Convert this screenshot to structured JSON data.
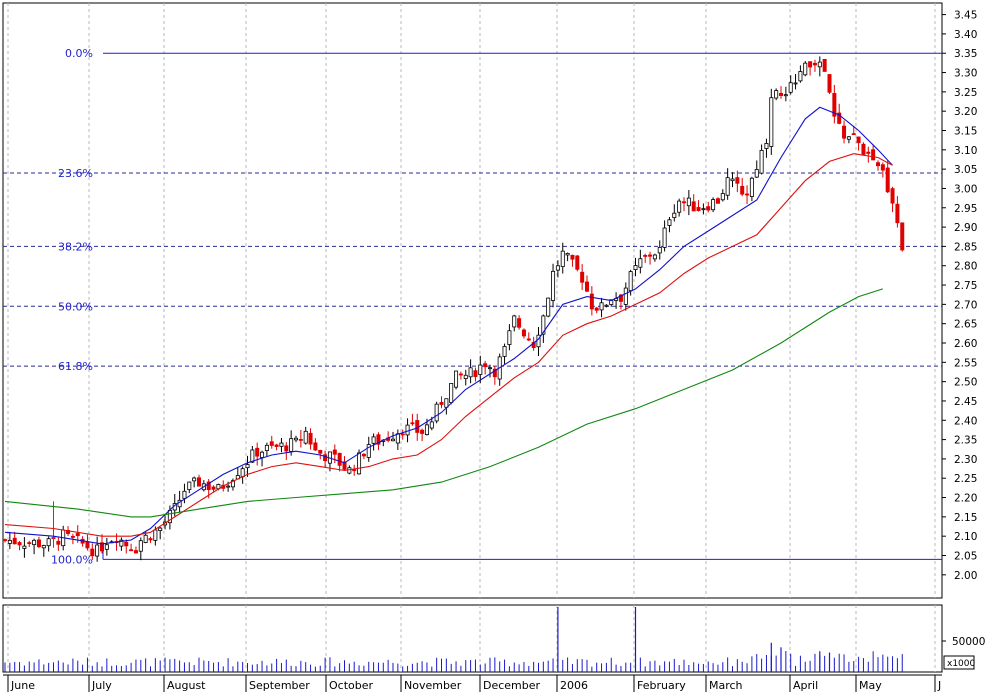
{
  "chart_data": {
    "type": "candlestick",
    "title": "",
    "price_axis": {
      "ylim": [
        1.94,
        3.48
      ],
      "ticks": [
        "2.00",
        "2.05",
        "2.10",
        "2.15",
        "2.20",
        "2.25",
        "2.30",
        "2.35",
        "2.40",
        "2.45",
        "2.50",
        "2.55",
        "2.60",
        "2.65",
        "2.70",
        "2.75",
        "2.80",
        "2.85",
        "2.90",
        "2.95",
        "3.00",
        "3.05",
        "3.10",
        "3.15",
        "3.20",
        "3.25",
        "3.30",
        "3.35",
        "3.40",
        "3.45"
      ],
      "position": "right"
    },
    "volume_axis": {
      "tick": "50000",
      "multiplier": "x1000"
    },
    "months": [
      "June",
      "July",
      "August",
      "September",
      "October",
      "November",
      "December",
      "2006",
      "February",
      "March",
      "April",
      "May",
      "J"
    ],
    "fibonacci": {
      "high": 3.35,
      "low": 2.04,
      "levels": [
        {
          "label": "0.0%",
          "value": 3.35,
          "style": "solid"
        },
        {
          "label": "23.6%",
          "value": 3.04,
          "style": "dashed"
        },
        {
          "label": "38.2%",
          "value": 2.85,
          "style": "dashed"
        },
        {
          "label": "50.0%",
          "value": 2.695,
          "style": "dashed"
        },
        {
          "label": "61.8%",
          "value": 2.54,
          "style": "dashed"
        },
        {
          "label": "100.0%",
          "value": 2.04,
          "style": "solid"
        }
      ]
    },
    "price_path": [
      [
        0,
        2.09
      ],
      [
        9,
        2.08
      ],
      [
        12,
        2.1
      ],
      [
        16,
        2.08
      ],
      [
        19,
        2.06
      ],
      [
        21,
        2.09
      ],
      [
        23,
        2.1
      ],
      [
        25,
        2.08
      ],
      [
        27,
        2.07
      ],
      [
        28,
        2.09
      ],
      [
        32,
        2.12
      ],
      [
        35,
        2.17
      ],
      [
        37,
        2.22
      ],
      [
        40,
        2.24
      ],
      [
        44,
        2.22
      ],
      [
        48,
        2.27
      ],
      [
        52,
        2.32
      ],
      [
        56,
        2.33
      ],
      [
        60,
        2.34
      ],
      [
        62,
        2.37
      ],
      [
        64,
        2.32
      ],
      [
        68,
        2.3
      ],
      [
        71,
        2.27
      ],
      [
        73,
        2.3
      ],
      [
        75,
        2.34
      ],
      [
        78,
        2.35
      ],
      [
        82,
        2.38
      ],
      [
        86,
        2.37
      ],
      [
        88,
        2.4
      ],
      [
        90,
        2.45
      ],
      [
        93,
        2.51
      ],
      [
        96,
        2.52
      ],
      [
        99,
        2.55
      ],
      [
        101,
        2.53
      ],
      [
        103,
        2.58
      ],
      [
        105,
        2.66
      ],
      [
        107,
        2.63
      ],
      [
        109,
        2.6
      ],
      [
        111,
        2.67
      ],
      [
        113,
        2.78
      ],
      [
        115,
        2.83
      ],
      [
        117,
        2.8
      ],
      [
        119,
        2.77
      ],
      [
        121,
        2.7
      ],
      [
        123,
        2.69
      ],
      [
        125,
        2.72
      ],
      [
        127,
        2.72
      ],
      [
        129,
        2.77
      ],
      [
        131,
        2.81
      ],
      [
        133,
        2.83
      ],
      [
        135,
        2.84
      ],
      [
        137,
        2.93
      ],
      [
        139,
        2.97
      ],
      [
        143,
        2.95
      ],
      [
        147,
        2.97
      ],
      [
        149,
        3.02
      ],
      [
        151,
        3.0
      ],
      [
        153,
        2.99
      ],
      [
        155,
        3.06
      ],
      [
        157,
        3.13
      ],
      [
        158,
        3.25
      ],
      [
        161,
        3.23
      ],
      [
        163,
        3.29
      ],
      [
        165,
        3.31
      ],
      [
        167,
        3.33
      ],
      [
        169,
        3.3
      ],
      [
        171,
        3.18
      ],
      [
        173,
        3.14
      ],
      [
        175,
        3.13
      ],
      [
        177,
        3.1
      ],
      [
        179,
        3.06
      ],
      [
        181,
        3.04
      ],
      [
        183,
        2.97
      ],
      [
        185,
        2.85
      ]
    ],
    "volume_spikes": [
      [
        114,
        1.0
      ],
      [
        130,
        1.06
      ],
      [
        158,
        0.45
      ],
      [
        160,
        0.38
      ],
      [
        168,
        0.32
      ],
      [
        170,
        0.3
      ]
    ],
    "moving_averages": [
      {
        "color": "#1010cc",
        "points": [
          [
            0,
            2.11
          ],
          [
            10,
            2.1
          ],
          [
            20,
            2.08
          ],
          [
            26,
            2.09
          ],
          [
            30,
            2.12
          ],
          [
            35,
            2.18
          ],
          [
            40,
            2.22
          ],
          [
            45,
            2.26
          ],
          [
            50,
            2.29
          ],
          [
            55,
            2.31
          ],
          [
            60,
            2.32
          ],
          [
            65,
            2.31
          ],
          [
            70,
            2.29
          ],
          [
            75,
            2.33
          ],
          [
            80,
            2.36
          ],
          [
            85,
            2.38
          ],
          [
            90,
            2.42
          ],
          [
            95,
            2.48
          ],
          [
            100,
            2.52
          ],
          [
            105,
            2.56
          ],
          [
            110,
            2.61
          ],
          [
            115,
            2.7
          ],
          [
            120,
            2.72
          ],
          [
            125,
            2.71
          ],
          [
            130,
            2.74
          ],
          [
            135,
            2.79
          ],
          [
            140,
            2.85
          ],
          [
            145,
            2.89
          ],
          [
            150,
            2.93
          ],
          [
            155,
            2.97
          ],
          [
            160,
            3.08
          ],
          [
            165,
            3.18
          ],
          [
            168,
            3.21
          ],
          [
            172,
            3.19
          ],
          [
            176,
            3.15
          ],
          [
            180,
            3.1
          ],
          [
            183,
            3.06
          ]
        ]
      },
      {
        "color": "#dd1111",
        "points": [
          [
            0,
            2.13
          ],
          [
            10,
            2.12
          ],
          [
            20,
            2.1
          ],
          [
            26,
            2.1
          ],
          [
            30,
            2.11
          ],
          [
            35,
            2.15
          ],
          [
            40,
            2.19
          ],
          [
            45,
            2.23
          ],
          [
            50,
            2.26
          ],
          [
            55,
            2.28
          ],
          [
            60,
            2.29
          ],
          [
            65,
            2.28
          ],
          [
            70,
            2.27
          ],
          [
            75,
            2.28
          ],
          [
            80,
            2.3
          ],
          [
            85,
            2.31
          ],
          [
            90,
            2.35
          ],
          [
            95,
            2.41
          ],
          [
            100,
            2.46
          ],
          [
            105,
            2.51
          ],
          [
            110,
            2.55
          ],
          [
            115,
            2.62
          ],
          [
            120,
            2.65
          ],
          [
            125,
            2.67
          ],
          [
            130,
            2.7
          ],
          [
            135,
            2.73
          ],
          [
            140,
            2.78
          ],
          [
            145,
            2.82
          ],
          [
            150,
            2.85
          ],
          [
            155,
            2.88
          ],
          [
            160,
            2.95
          ],
          [
            165,
            3.02
          ],
          [
            170,
            3.07
          ],
          [
            175,
            3.09
          ],
          [
            180,
            3.08
          ],
          [
            183,
            3.06
          ]
        ]
      },
      {
        "color": "#118811",
        "points": [
          [
            0,
            2.19
          ],
          [
            15,
            2.17
          ],
          [
            26,
            2.15
          ],
          [
            30,
            2.15
          ],
          [
            40,
            2.17
          ],
          [
            50,
            2.19
          ],
          [
            60,
            2.2
          ],
          [
            70,
            2.21
          ],
          [
            80,
            2.22
          ],
          [
            90,
            2.24
          ],
          [
            100,
            2.28
          ],
          [
            110,
            2.33
          ],
          [
            120,
            2.39
          ],
          [
            130,
            2.43
          ],
          [
            140,
            2.48
          ],
          [
            150,
            2.53
          ],
          [
            160,
            2.6
          ],
          [
            170,
            2.68
          ],
          [
            176,
            2.72
          ],
          [
            181,
            2.74
          ]
        ]
      }
    ]
  }
}
